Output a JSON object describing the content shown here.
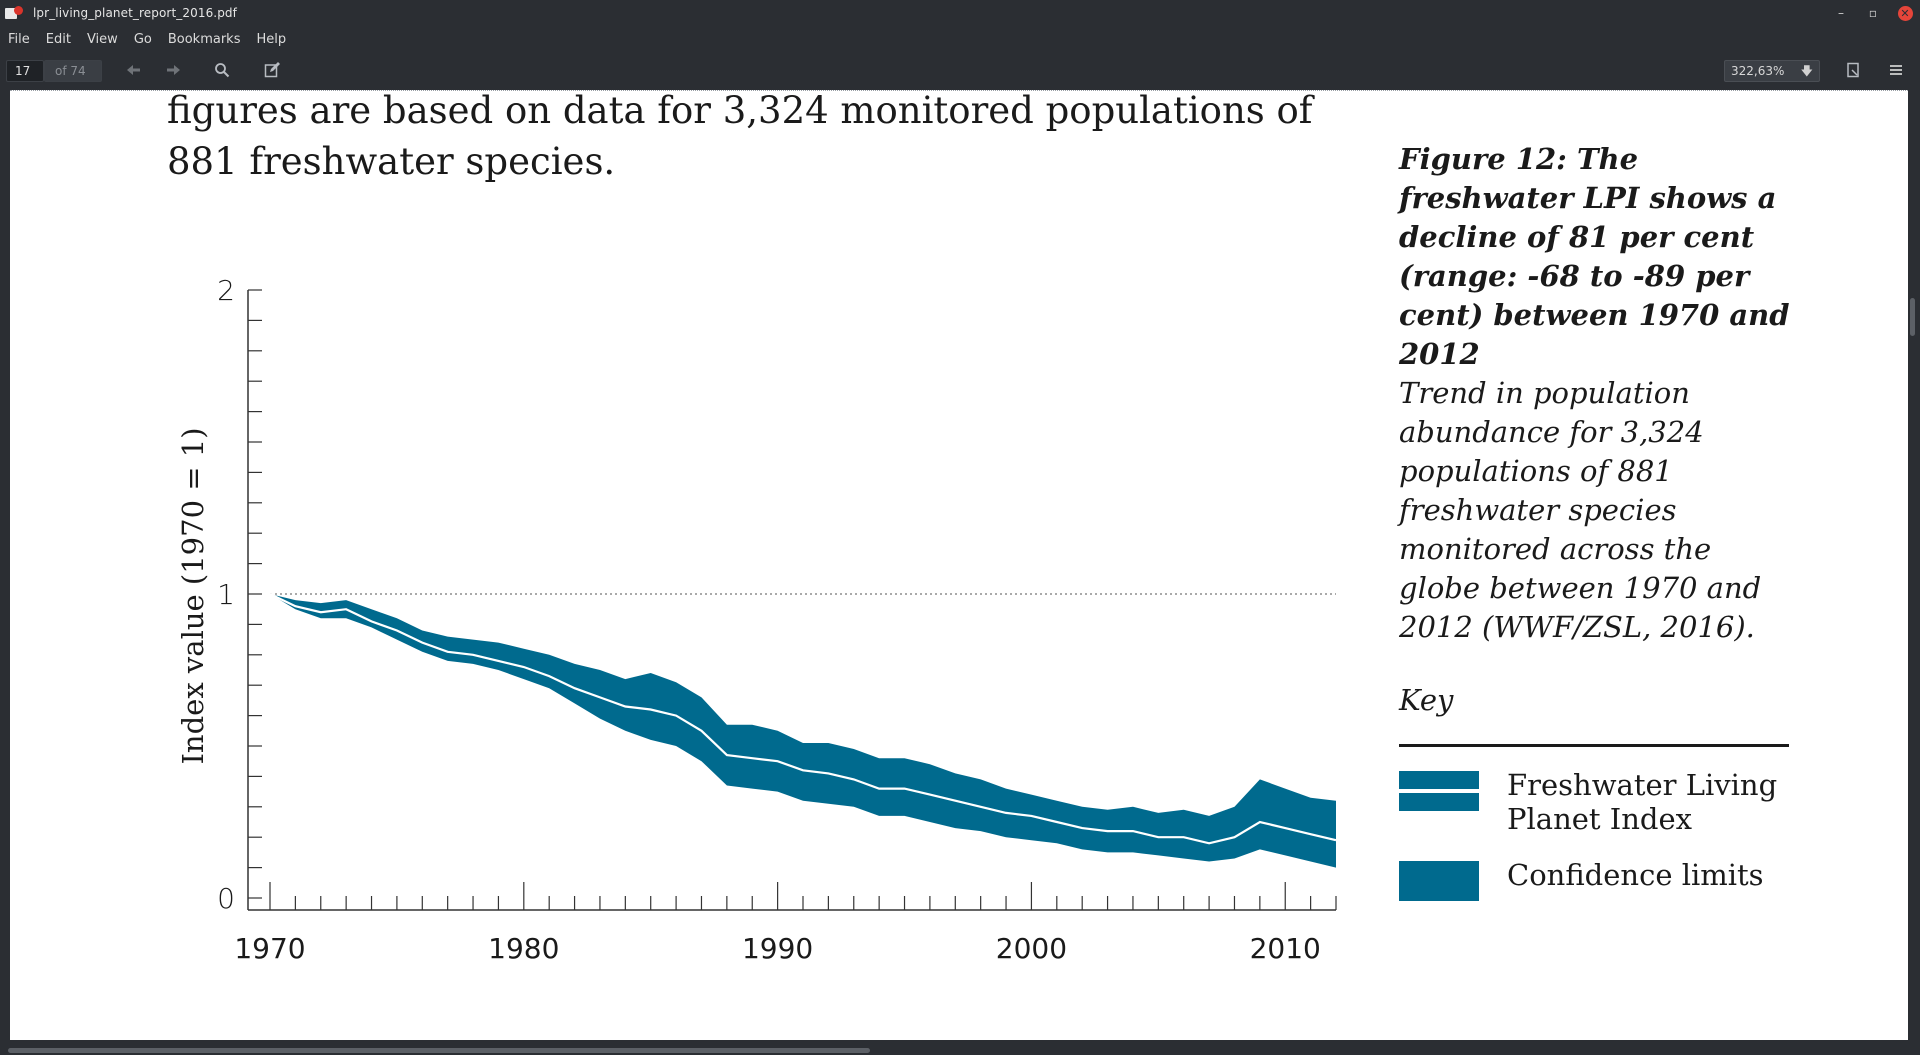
{
  "window": {
    "title": "lpr_living_planet_report_2016.pdf",
    "minimize": "–",
    "maximize": "▫",
    "close": "✕"
  },
  "menu": [
    "File",
    "Edit",
    "View",
    "Go",
    "Bookmarks",
    "Help"
  ],
  "toolbar": {
    "page_current": "17",
    "page_of": "of 74",
    "zoom": "322,63%",
    "icons": [
      "prev-page-icon",
      "next-page-icon",
      "search-icon",
      "annotate-icon",
      "bookmark-icon",
      "hamburger-menu-icon"
    ]
  },
  "document": {
    "body_line1": "figures are based on data for 3,324 monitored populations of",
    "body_line2": "881 freshwater species.",
    "caption_title": "Figure 12: The freshwater LPI shows a decline of 81 per cent (range: -68 to -89 per cent) between 1970 and 2012",
    "caption_desc": "Trend in population abundance for 3,324 populations of 881 freshwater species monitored across the globe between 1970 and 2012 (WWF/ZSL, 2016).",
    "key": {
      "title": "Key",
      "items": [
        {
          "label": "Freshwater Living Planet Index"
        },
        {
          "label": "Confidence limits"
        }
      ],
      "color": "#006a8e"
    }
  },
  "chart_data": {
    "type": "area",
    "ylabel": "Index value (1970 = 1)",
    "xlabel": "",
    "xlim": [
      1970,
      2012
    ],
    "ylim": [
      0,
      2
    ],
    "x_ticks": [
      1970,
      1980,
      1990,
      2000,
      2010
    ],
    "y_ticks": [
      0,
      1,
      2
    ],
    "baseline": 1,
    "color": "#006a8e",
    "x": [
      1970,
      1971,
      1972,
      1973,
      1974,
      1975,
      1976,
      1977,
      1978,
      1979,
      1980,
      1981,
      1982,
      1983,
      1984,
      1985,
      1986,
      1987,
      1988,
      1989,
      1990,
      1991,
      1992,
      1993,
      1994,
      1995,
      1996,
      1997,
      1998,
      1999,
      2000,
      2001,
      2002,
      2003,
      2004,
      2005,
      2006,
      2007,
      2008,
      2009,
      2010,
      2011,
      2012
    ],
    "series": [
      {
        "name": "Freshwater Living Planet Index",
        "values": [
          1.0,
          0.96,
          0.94,
          0.95,
          0.91,
          0.88,
          0.84,
          0.81,
          0.8,
          0.78,
          0.76,
          0.73,
          0.69,
          0.66,
          0.63,
          0.62,
          0.6,
          0.55,
          0.47,
          0.46,
          0.45,
          0.42,
          0.41,
          0.39,
          0.36,
          0.36,
          0.34,
          0.32,
          0.3,
          0.28,
          0.27,
          0.25,
          0.23,
          0.22,
          0.22,
          0.2,
          0.2,
          0.18,
          0.2,
          0.25,
          0.23,
          0.21,
          0.19
        ]
      },
      {
        "name": "Confidence limits upper",
        "values": [
          1.0,
          0.98,
          0.97,
          0.98,
          0.95,
          0.92,
          0.88,
          0.86,
          0.85,
          0.84,
          0.82,
          0.8,
          0.77,
          0.75,
          0.72,
          0.74,
          0.71,
          0.66,
          0.57,
          0.57,
          0.55,
          0.51,
          0.51,
          0.49,
          0.46,
          0.46,
          0.44,
          0.41,
          0.39,
          0.36,
          0.34,
          0.32,
          0.3,
          0.29,
          0.3,
          0.28,
          0.29,
          0.27,
          0.3,
          0.39,
          0.36,
          0.33,
          0.32
        ]
      },
      {
        "name": "Confidence limits lower",
        "values": [
          1.0,
          0.95,
          0.92,
          0.92,
          0.89,
          0.85,
          0.81,
          0.78,
          0.77,
          0.75,
          0.72,
          0.69,
          0.64,
          0.59,
          0.55,
          0.52,
          0.5,
          0.45,
          0.37,
          0.36,
          0.35,
          0.32,
          0.31,
          0.3,
          0.27,
          0.27,
          0.25,
          0.23,
          0.22,
          0.2,
          0.19,
          0.18,
          0.16,
          0.15,
          0.15,
          0.14,
          0.13,
          0.12,
          0.13,
          0.16,
          0.14,
          0.12,
          0.1
        ]
      }
    ]
  }
}
